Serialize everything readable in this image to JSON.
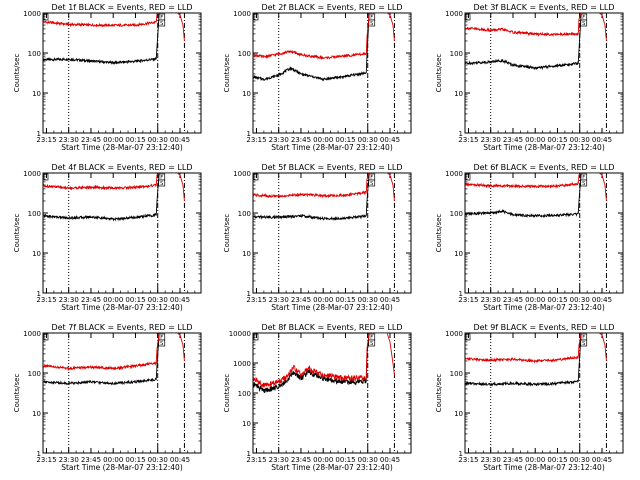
{
  "figure": {
    "x_ticks": [
      "23:15",
      "23:30",
      "23:45",
      "00:00",
      "00:15",
      "00:30",
      "00:45"
    ],
    "x_label": "Start Time (28-Mar-07 23:12:40)",
    "y_label": "Counts/sec",
    "line_colors": {
      "events": "#000000",
      "lld": "#e00000"
    }
  },
  "chart_data": [
    {
      "type": "line",
      "title": "Det 1f BLACK = Events, RED = LLD",
      "y_scale": "log",
      "ylim": [
        1,
        1000
      ],
      "y_ticks": [
        "1",
        "10",
        "100",
        "1000"
      ],
      "x_range_minutes_after_23_12_40": [
        0,
        106.5
      ],
      "markers": {
        "dotted_vertical_at": "23:30",
        "dash_dot_vertical_at": "00:30",
        "dash_dot_vertical_2_at": "00:48",
        "box_labels": [
          "F",
          "S"
        ]
      },
      "series": [
        {
          "name": "Events",
          "color": "#000000",
          "x": [
            "23:13",
            "23:30",
            "23:45",
            "00:00",
            "00:15",
            "00:29",
            "00:29.5",
            "00:31"
          ],
          "values": [
            68,
            70,
            63,
            57,
            62,
            71,
            140,
            1000
          ]
        },
        {
          "name": "LLD",
          "color": "#e00000",
          "x": [
            "23:13",
            "23:30",
            "23:45",
            "00:00",
            "00:15",
            "00:29",
            "00:29.5",
            "00:31",
            "00:43",
            "00:45",
            "00:47",
            "00:48"
          ],
          "values": [
            600,
            520,
            500,
            490,
            500,
            590,
            950,
            1000,
            1000,
            900,
            500,
            200
          ]
        }
      ]
    },
    {
      "type": "line",
      "title": "Det 2f BLACK = Events, RED = LLD",
      "y_scale": "log",
      "ylim": [
        1,
        1000
      ],
      "y_ticks": [
        "1",
        "10",
        "100",
        "1000"
      ],
      "x_range_minutes_after_23_12_40": [
        0,
        106.5
      ],
      "markers": {
        "dotted_vertical_at": "23:30",
        "dash_dot_vertical_at": "00:30",
        "dash_dot_vertical_2_at": "00:48",
        "box_labels": [
          "F",
          "S"
        ]
      },
      "series": [
        {
          "name": "Events",
          "color": "#000000",
          "x": [
            "23:13",
            "23:20",
            "23:30",
            "23:38",
            "23:45",
            "00:00",
            "00:15",
            "00:29",
            "00:29.5",
            "00:31"
          ],
          "values": [
            25,
            22,
            28,
            42,
            30,
            22,
            26,
            32,
            90,
            1000
          ]
        },
        {
          "name": "LLD",
          "color": "#e00000",
          "x": [
            "23:13",
            "23:20",
            "23:30",
            "23:38",
            "23:45",
            "00:00",
            "00:15",
            "00:29",
            "00:29.5",
            "00:31",
            "00:43",
            "00:45",
            "00:47",
            "00:48"
          ],
          "values": [
            90,
            80,
            95,
            110,
            90,
            75,
            85,
            95,
            250,
            1000,
            1000,
            900,
            500,
            200
          ]
        }
      ]
    },
    {
      "type": "line",
      "title": "Det 3f BLACK = Events, RED = LLD",
      "y_scale": "log",
      "ylim": [
        1,
        1000
      ],
      "y_ticks": [
        "1",
        "10",
        "100",
        "1000"
      ],
      "x_range_minutes_after_23_12_40": [
        0,
        106.5
      ],
      "markers": {
        "dotted_vertical_at": "23:30",
        "dash_dot_vertical_at": "00:30",
        "dash_dot_vertical_2_at": "00:48",
        "box_labels": [
          "F",
          "S"
        ]
      },
      "series": [
        {
          "name": "Events",
          "color": "#000000",
          "x": [
            "23:13",
            "23:30",
            "23:38",
            "23:45",
            "00:00",
            "00:15",
            "00:29",
            "00:29.5",
            "00:31"
          ],
          "values": [
            55,
            60,
            65,
            50,
            42,
            48,
            55,
            120,
            1000
          ]
        },
        {
          "name": "LLD",
          "color": "#e00000",
          "x": [
            "23:13",
            "23:30",
            "23:38",
            "23:45",
            "00:00",
            "00:15",
            "00:29",
            "00:29.5",
            "00:31",
            "00:43",
            "00:45",
            "00:47",
            "00:48"
          ],
          "values": [
            420,
            370,
            390,
            330,
            300,
            290,
            300,
            700,
            1000,
            1000,
            900,
            500,
            200
          ]
        }
      ]
    },
    {
      "type": "line",
      "title": "Det 4f BLACK = Events, RED = LLD",
      "y_scale": "log",
      "ylim": [
        1,
        1000
      ],
      "y_ticks": [
        "1",
        "10",
        "100",
        "1000"
      ],
      "x_range_minutes_after_23_12_40": [
        0,
        106.5
      ],
      "markers": {
        "dotted_vertical_at": "23:30",
        "dash_dot_vertical_at": "00:30",
        "dash_dot_vertical_2_at": "00:48",
        "box_labels": [
          "F",
          "S"
        ]
      },
      "series": [
        {
          "name": "Events",
          "color": "#000000",
          "x": [
            "23:13",
            "23:30",
            "23:45",
            "00:00",
            "00:15",
            "00:29",
            "00:29.5",
            "00:31"
          ],
          "values": [
            85,
            75,
            80,
            70,
            78,
            90,
            200,
            1000
          ]
        },
        {
          "name": "LLD",
          "color": "#e00000",
          "x": [
            "23:13",
            "23:30",
            "23:45",
            "00:00",
            "00:15",
            "00:29",
            "00:29.5",
            "00:31",
            "00:43",
            "00:45",
            "00:47",
            "00:48"
          ],
          "values": [
            480,
            420,
            440,
            420,
            440,
            500,
            900,
            1000,
            1000,
            900,
            500,
            200
          ]
        }
      ]
    },
    {
      "type": "line",
      "title": "Det 5f BLACK = Events, RED = LLD",
      "y_scale": "log",
      "ylim": [
        1,
        1000
      ],
      "y_ticks": [
        "1",
        "10",
        "100",
        "1000"
      ],
      "x_range_minutes_after_23_12_40": [
        0,
        106.5
      ],
      "markers": {
        "dotted_vertical_at": "23:30",
        "dash_dot_vertical_at": "00:30",
        "dash_dot_vertical_2_at": "00:48",
        "box_labels": [
          "F",
          "S"
        ]
      },
      "series": [
        {
          "name": "Events",
          "color": "#000000",
          "x": [
            "23:13",
            "23:30",
            "23:45",
            "00:00",
            "00:15",
            "00:29",
            "00:29.5",
            "00:31"
          ],
          "values": [
            80,
            78,
            85,
            72,
            75,
            85,
            200,
            1000
          ]
        },
        {
          "name": "LLD",
          "color": "#e00000",
          "x": [
            "23:13",
            "23:30",
            "23:45",
            "00:00",
            "00:15",
            "00:29",
            "00:29.5",
            "00:31",
            "00:43",
            "00:45",
            "00:47",
            "00:48"
          ],
          "values": [
            280,
            260,
            290,
            270,
            280,
            330,
            700,
            1000,
            1000,
            900,
            500,
            200
          ]
        }
      ]
    },
    {
      "type": "line",
      "title": "Det 6f BLACK = Events, RED = LLD",
      "y_scale": "log",
      "ylim": [
        1,
        1000
      ],
      "y_ticks": [
        "1",
        "10",
        "100",
        "1000"
      ],
      "x_range_minutes_after_23_12_40": [
        0,
        106.5
      ],
      "markers": {
        "dotted_vertical_at": "23:30",
        "dash_dot_vertical_at": "00:30",
        "dash_dot_vertical_2_at": "00:48",
        "box_labels": [
          "F",
          "S"
        ]
      },
      "series": [
        {
          "name": "Events",
          "color": "#000000",
          "x": [
            "23:13",
            "23:30",
            "23:38",
            "23:45",
            "00:00",
            "00:15",
            "00:29",
            "00:29.5",
            "00:31"
          ],
          "values": [
            95,
            100,
            110,
            90,
            85,
            88,
            95,
            200,
            1000
          ]
        },
        {
          "name": "LLD",
          "color": "#e00000",
          "x": [
            "23:13",
            "23:30",
            "23:45",
            "00:00",
            "00:15",
            "00:29",
            "00:29.5",
            "00:31",
            "00:43",
            "00:45",
            "00:47",
            "00:48"
          ],
          "values": [
            520,
            480,
            470,
            460,
            470,
            540,
            900,
            1000,
            1000,
            900,
            500,
            200
          ]
        }
      ]
    },
    {
      "type": "line",
      "title": "Det 7f BLACK = Events, RED = LLD",
      "y_scale": "log",
      "ylim": [
        1,
        1000
      ],
      "y_ticks": [
        "1",
        "10",
        "100",
        "1000"
      ],
      "x_range_minutes_after_23_12_40": [
        0,
        106.5
      ],
      "markers": {
        "dotted_vertical_at": "23:30",
        "dash_dot_vertical_at": "00:30",
        "dash_dot_vertical_2_at": "00:48",
        "box_labels": [
          "F",
          "S"
        ]
      },
      "series": [
        {
          "name": "Events",
          "color": "#000000",
          "x": [
            "23:13",
            "23:30",
            "23:45",
            "00:00",
            "00:15",
            "00:29",
            "00:29.5",
            "00:31"
          ],
          "values": [
            60,
            55,
            60,
            55,
            60,
            70,
            150,
            1000
          ]
        },
        {
          "name": "LLD",
          "color": "#e00000",
          "x": [
            "23:13",
            "23:30",
            "23:45",
            "00:00",
            "00:15",
            "00:29",
            "00:29.5",
            "00:31",
            "00:43",
            "00:45",
            "00:47",
            "00:48"
          ],
          "values": [
            150,
            130,
            140,
            130,
            150,
            180,
            400,
            1000,
            1000,
            900,
            500,
            200
          ]
        }
      ]
    },
    {
      "type": "line",
      "title": "Det 8f BLACK = Events, RED = LLD",
      "y_scale": "log",
      "ylim": [
        1,
        10000
      ],
      "y_ticks": [
        "1",
        "10",
        "100",
        "1000",
        "10000"
      ],
      "x_range_minutes_after_23_12_40": [
        0,
        106.5
      ],
      "markers": {
        "dotted_vertical_at": "23:30",
        "dash_dot_vertical_at": "00:30",
        "dash_dot_vertical_2_at": "00:48",
        "box_labels": [
          "F",
          "S"
        ]
      },
      "series": [
        {
          "name": "Events",
          "color": "#000000",
          "x": [
            "23:13",
            "23:20",
            "23:28",
            "23:35",
            "23:40",
            "23:45",
            "23:50",
            "00:00",
            "00:10",
            "00:20",
            "00:29",
            "00:29.5",
            "00:31"
          ],
          "values": [
            200,
            120,
            150,
            250,
            500,
            300,
            500,
            300,
            250,
            230,
            250,
            2000,
            10000
          ]
        },
        {
          "name": "LLD",
          "color": "#e00000",
          "x": [
            "23:13",
            "23:20",
            "23:28",
            "23:35",
            "23:40",
            "23:45",
            "23:50",
            "00:00",
            "00:10",
            "00:20",
            "00:29",
            "00:29.5",
            "00:31",
            "00:43",
            "00:45",
            "00:47",
            "00:48"
          ],
          "values": [
            300,
            180,
            220,
            320,
            700,
            400,
            650,
            400,
            330,
            300,
            330,
            3000,
            10000,
            10000,
            5000,
            1000,
            400
          ]
        }
      ]
    },
    {
      "type": "line",
      "title": "Det 9f BLACK = Events, RED = LLD",
      "y_scale": "log",
      "ylim": [
        1,
        1000
      ],
      "y_ticks": [
        "1",
        "10",
        "100",
        "1000"
      ],
      "x_range_minutes_after_23_12_40": [
        0,
        106.5
      ],
      "markers": {
        "dotted_vertical_at": "23:30",
        "dash_dot_vertical_at": "00:30",
        "dash_dot_vertical_2_at": "00:48",
        "box_labels": [
          "F",
          "S"
        ]
      },
      "series": [
        {
          "name": "Events",
          "color": "#000000",
          "x": [
            "23:13",
            "23:30",
            "23:45",
            "00:00",
            "00:15",
            "00:29",
            "00:29.5",
            "00:31"
          ],
          "values": [
            55,
            52,
            55,
            52,
            55,
            62,
            140,
            1000
          ]
        },
        {
          "name": "LLD",
          "color": "#e00000",
          "x": [
            "23:13",
            "23:30",
            "23:45",
            "00:00",
            "00:15",
            "00:29",
            "00:29.5",
            "00:31",
            "00:43",
            "00:45",
            "00:47",
            "00:48"
          ],
          "values": [
            230,
            210,
            220,
            200,
            210,
            250,
            500,
            1000,
            1000,
            900,
            500,
            200
          ]
        }
      ]
    }
  ]
}
